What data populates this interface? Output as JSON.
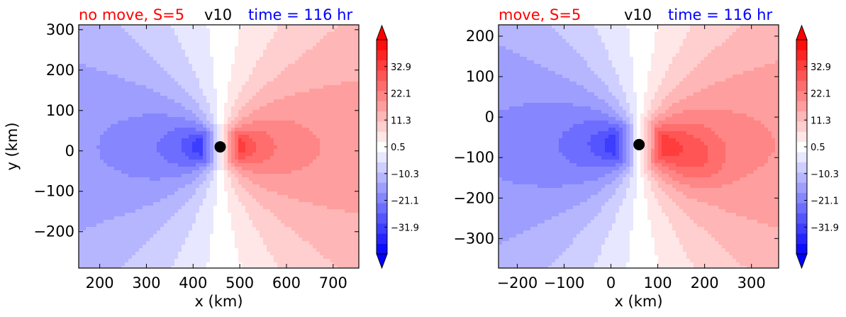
{
  "chart_data": [
    {
      "type": "heatmap",
      "header": {
        "left": "no move, S=5",
        "center": "v10",
        "right": "time = 116 hr"
      },
      "header_colors": {
        "left": "#ff0000",
        "center": "#000000",
        "right": "#0000ff"
      },
      "xlabel": "x (km)",
      "ylabel": "y (km)",
      "xlim": [
        155,
        755
      ],
      "ylim": [
        -290,
        312
      ],
      "xticks": [
        200,
        300,
        400,
        500,
        600,
        700
      ],
      "yticks": [
        -200,
        -100,
        0,
        100,
        200,
        300
      ],
      "center": {
        "x": 458,
        "y": 10
      },
      "colorbar": {
        "ticks": [
          "32.9",
          "22.1",
          "11.3",
          "0.5",
          "−10.3",
          "−21.1",
          "−31.9"
        ],
        "min": -42.7,
        "max": 43.7,
        "levels": 21,
        "extend": "both",
        "cmap": "bwr",
        "low_color": "#0000ff",
        "high_color": "#ff0000"
      }
    },
    {
      "type": "heatmap",
      "header": {
        "left": "move, S=5",
        "center": "v10",
        "right": "time = 116 hr"
      },
      "header_colors": {
        "left": "#ff0000",
        "center": "#000000",
        "right": "#0000ff"
      },
      "xlabel": "x (km)",
      "ylabel": "",
      "xlim": [
        -240,
        358
      ],
      "ylim": [
        -373,
        228
      ],
      "xticks": [
        -200,
        -100,
        0,
        100,
        200,
        300
      ],
      "yticks": [
        -300,
        -200,
        -100,
        0,
        100,
        200
      ],
      "center": {
        "x": 60,
        "y": -68
      },
      "colorbar": {
        "ticks": [
          "32.9",
          "22.1",
          "11.3",
          "0.5",
          "−10.3",
          "−21.1",
          "−31.9"
        ],
        "min": -42.7,
        "max": 43.7,
        "levels": 21,
        "extend": "both",
        "cmap": "bwr",
        "low_color": "#0000ff",
        "high_color": "#ff0000"
      }
    }
  ]
}
